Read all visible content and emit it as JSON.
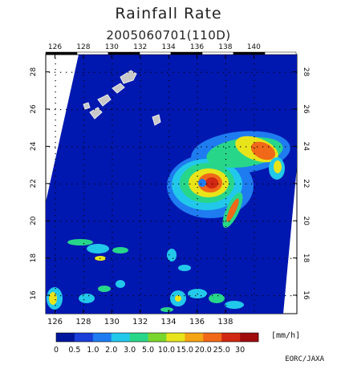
{
  "title": "Rainfall Rate",
  "subtitle": "2005060701(110D)",
  "credit": "EORC/JAXA",
  "map": {
    "lon_ticks": [
      "126",
      "128",
      "130",
      "132",
      "134",
      "136",
      "138",
      "140"
    ],
    "lat_ticks": [
      "16",
      "18",
      "20",
      "22",
      "24",
      "26",
      "28"
    ],
    "ocean_color": "#0018b0",
    "land_color": "#c8c8c8"
  },
  "colorbar": {
    "unit": "[mm/h]",
    "labels": [
      "0",
      "0.5",
      "1.0",
      "2.0",
      "3.0",
      "5.0",
      "10.0",
      "15.0",
      "20.0",
      "25.0",
      "30"
    ],
    "colors": [
      "#00169c",
      "#1a3ed8",
      "#1e7cf0",
      "#22c8ea",
      "#28d68a",
      "#7ad62c",
      "#e8e41a",
      "#f4a414",
      "#f06818",
      "#d02812",
      "#a00c0c"
    ]
  }
}
